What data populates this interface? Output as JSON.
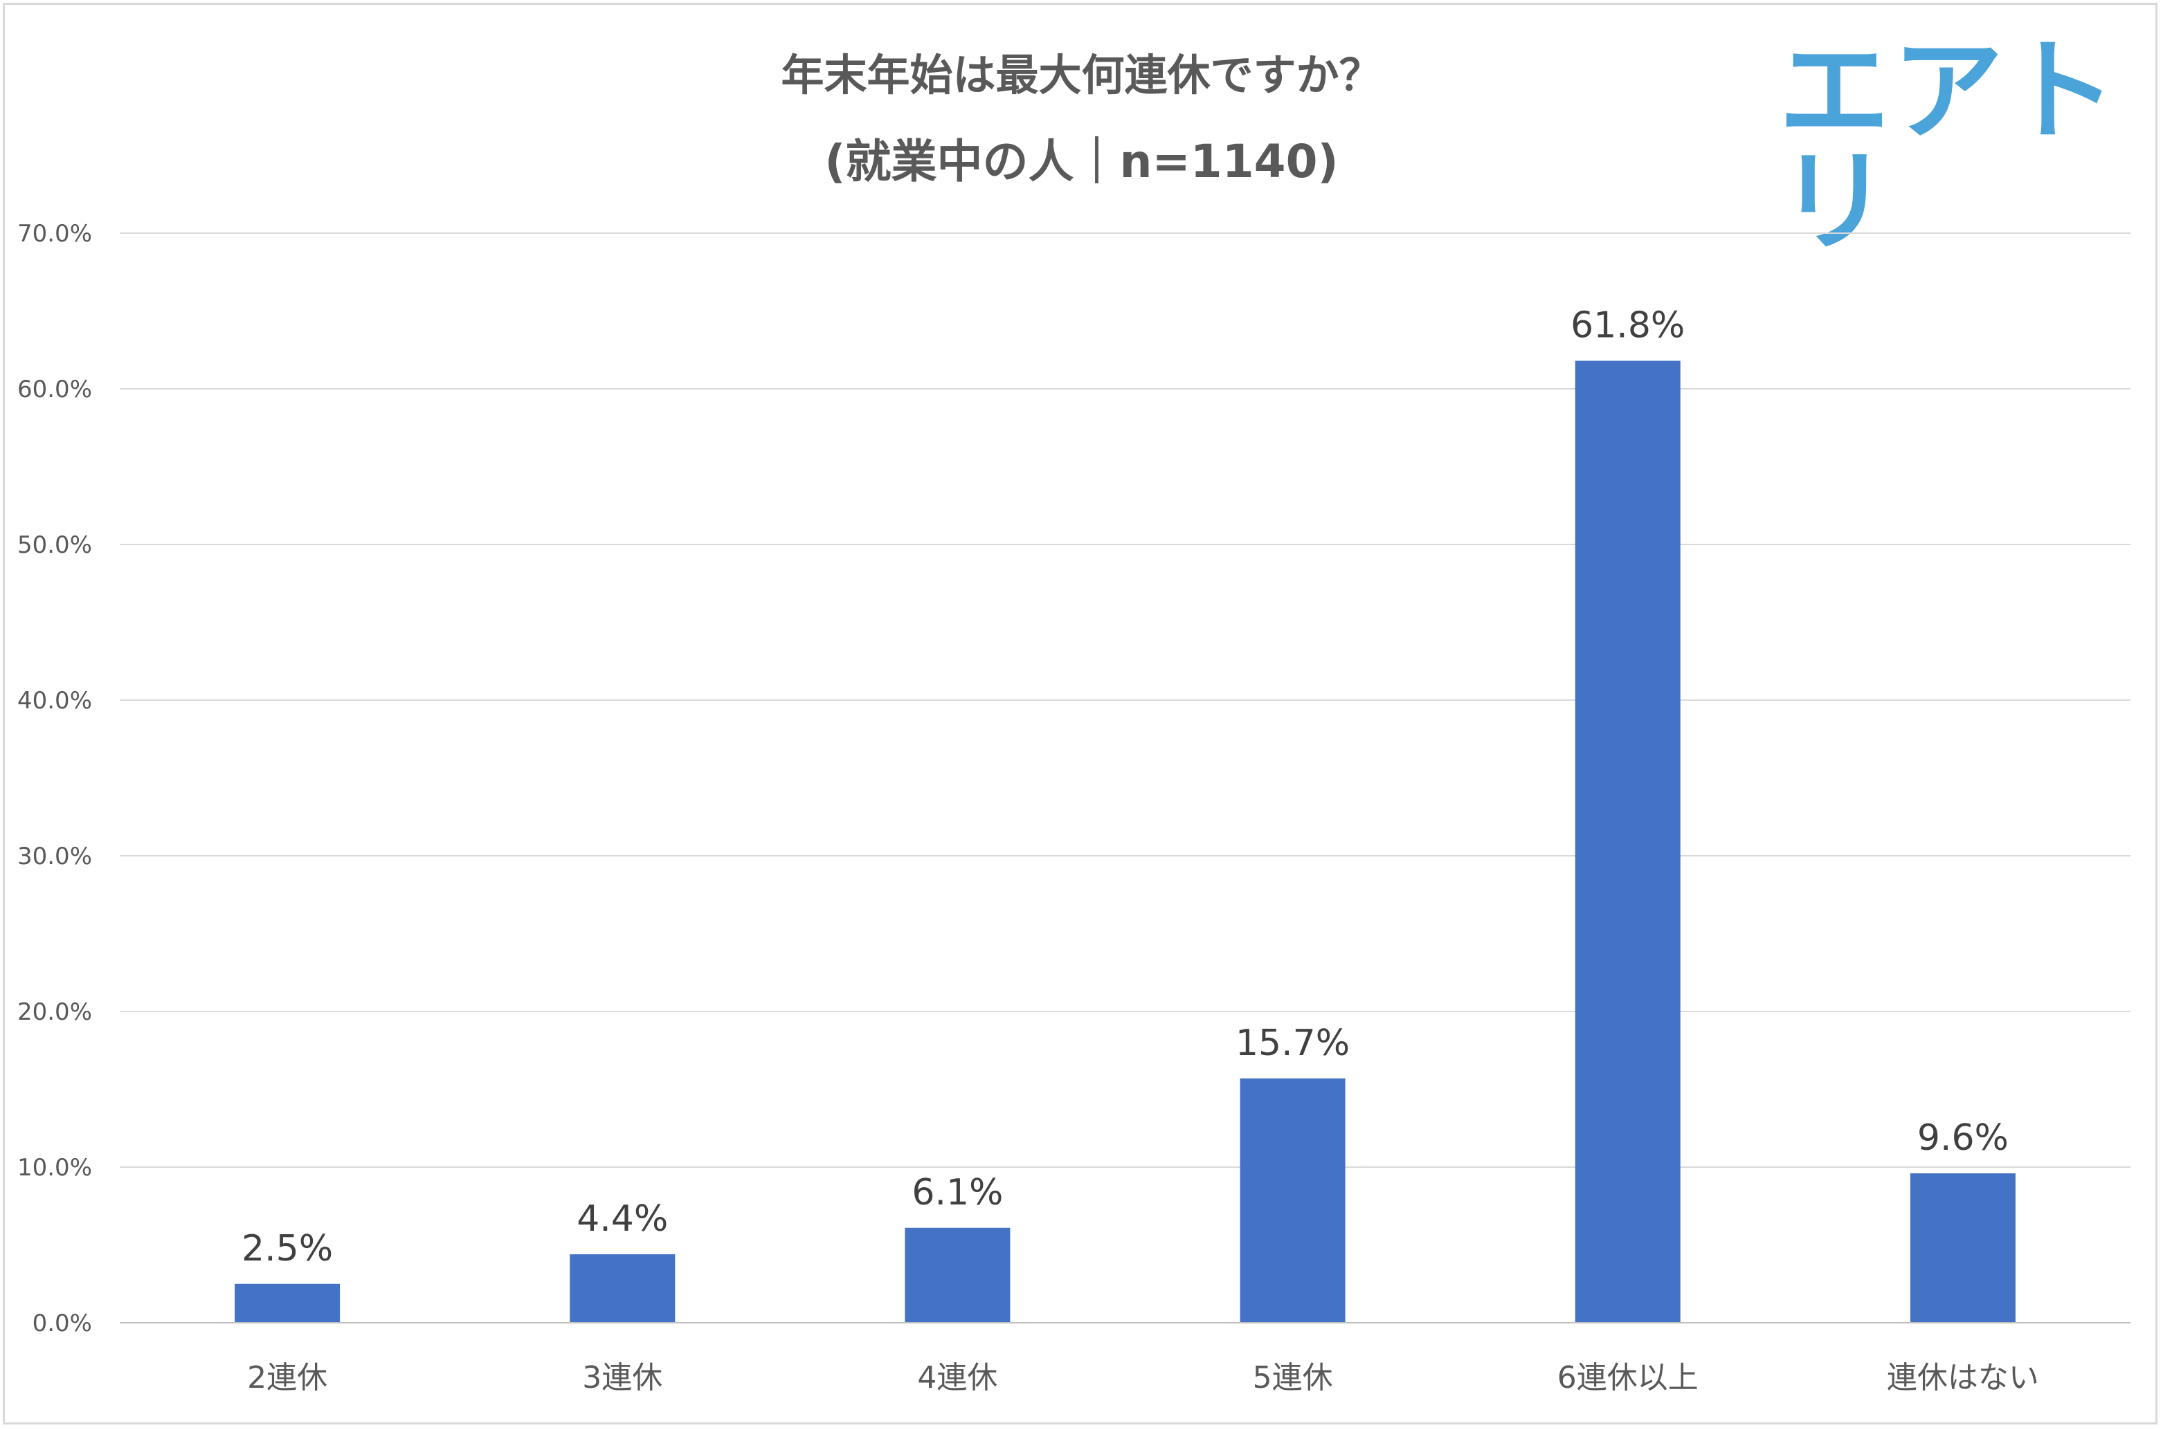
{
  "chart_data": {
    "type": "bar",
    "title": "年末年始は最大何連休ですか？",
    "subtitle": "(就業中の人｜n=1140)",
    "categories": [
      "2連休",
      "3連休",
      "4連休",
      "5連休",
      "6連休以上",
      "連休はない"
    ],
    "values": [
      2.5,
      4.4,
      6.1,
      15.7,
      61.8,
      9.6
    ],
    "data_labels": [
      "2.5%",
      "4.4%",
      "6.1%",
      "15.7%",
      "61.8%",
      "9.6%"
    ],
    "y_ticks": [
      "0.0%",
      "10.0%",
      "20.0%",
      "30.0%",
      "40.0%",
      "50.0%",
      "60.0%",
      "70.0%"
    ],
    "ylim": [
      0,
      70
    ],
    "grid": true,
    "legend": "none",
    "bar_color": "#4472c4",
    "xlabel": "",
    "ylabel": ""
  },
  "brand": {
    "logo_text": "エアトリ",
    "logo_color": "#4aa3d9"
  }
}
